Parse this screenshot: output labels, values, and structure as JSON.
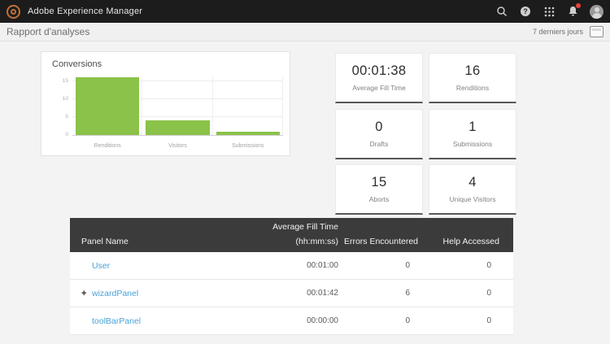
{
  "top_bar": {
    "app_title": "Adobe Experience Manager"
  },
  "sub_header": {
    "title": "Rapport d'analyses",
    "date_range": "7 derniers jours"
  },
  "chart_data": {
    "type": "bar",
    "title": "Conversions",
    "categories": [
      "Renditions",
      "Visitors",
      "Submissions"
    ],
    "values": [
      16,
      4,
      1
    ],
    "y_ticks": [
      0,
      5,
      10,
      15
    ],
    "ylim": [
      0,
      16.25
    ],
    "xlabel": "",
    "ylabel": "",
    "grid": true,
    "legend": false,
    "bar_color": "#8ac24a"
  },
  "stat_cards": [
    {
      "value": "00:01:38",
      "label": "Average Fill Time"
    },
    {
      "value": "16",
      "label": "Renditions"
    },
    {
      "value": "0",
      "label": "Drafts"
    },
    {
      "value": "1",
      "label": "Submissions"
    },
    {
      "value": "15",
      "label": "Aborts"
    },
    {
      "value": "4",
      "label": "Unique Visitors"
    }
  ],
  "table": {
    "group_header": "Average Fill Time",
    "columns": [
      "Panel Name",
      "(hh:mm:ss)",
      "Errors Encountered",
      "Help Accessed"
    ],
    "expander_symbol": "+",
    "rows": [
      {
        "expandable": false,
        "panel": "User",
        "time": "00:01:00",
        "errors": "0",
        "help": "0"
      },
      {
        "expandable": true,
        "panel": "wizardPanel",
        "time": "00:01:42",
        "errors": "6",
        "help": "0"
      },
      {
        "expandable": false,
        "panel": "toolBarPanel",
        "time": "00:00:00",
        "errors": "0",
        "help": "0"
      }
    ]
  },
  "colors": {
    "topbar_bg": "#1c1c1c",
    "logo_ring": "#c0703a",
    "bar_green": "#8ac24a",
    "table_header_bg": "#3b3b3b",
    "link_blue": "#4aa2d7",
    "notification_red": "#e8413d",
    "page_bg": "#f3f3f3"
  }
}
